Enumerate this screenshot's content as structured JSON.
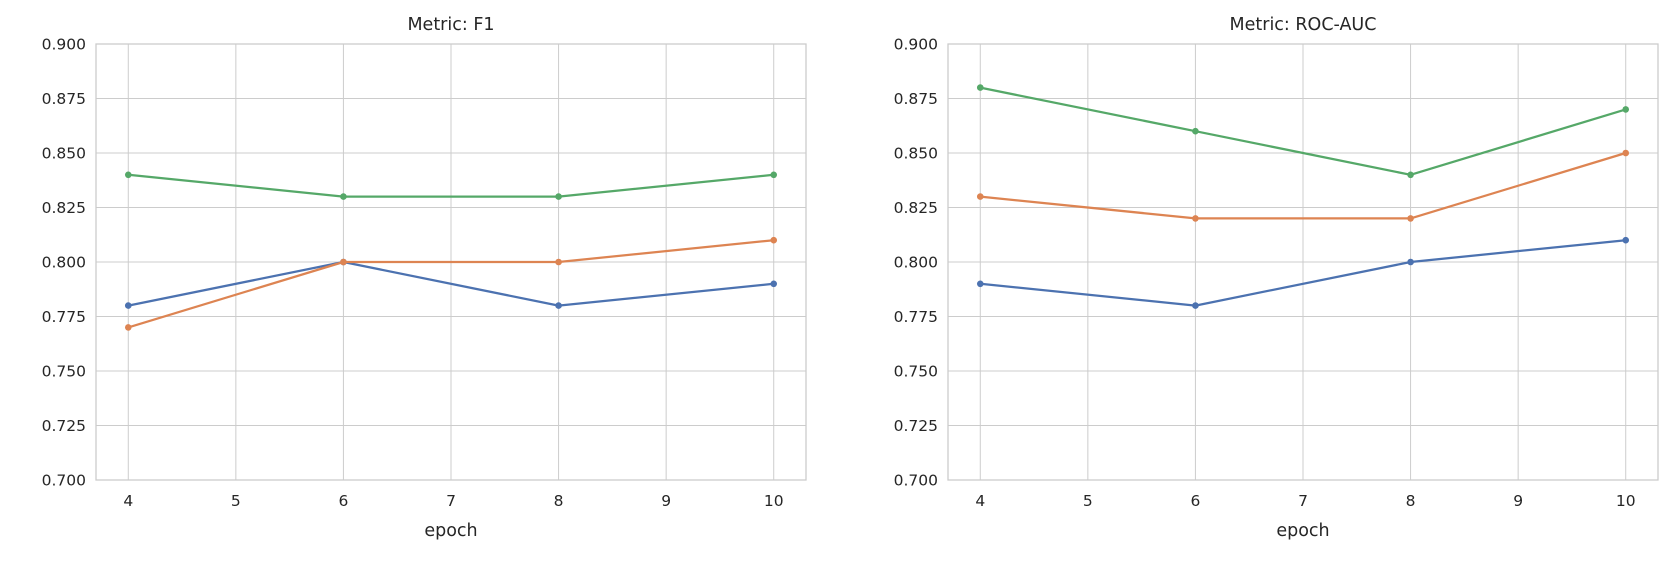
{
  "figure": {
    "background": "#ffffff",
    "text_color": "#262626",
    "grid_color": "#cccccc",
    "spine_color": "#cccccc"
  },
  "chart_data": [
    {
      "type": "line",
      "title": "Metric: F1",
      "xlabel": "epoch",
      "ylabel": "",
      "x": [
        4,
        6,
        8,
        10
      ],
      "xticks": [
        4,
        5,
        6,
        7,
        8,
        9,
        10
      ],
      "yticks": [
        0.7,
        0.725,
        0.75,
        0.775,
        0.8,
        0.825,
        0.85,
        0.875,
        0.9
      ],
      "ytick_labels": [
        "0.700",
        "0.725",
        "0.750",
        "0.775",
        "0.800",
        "0.825",
        "0.850",
        "0.875",
        "0.900"
      ],
      "xlim": [
        3.7,
        10.3
      ],
      "ylim": [
        0.7,
        0.9
      ],
      "grid": true,
      "legend": "none",
      "series": [
        {
          "name": "blue-series",
          "color": "#4C72B0",
          "values": [
            0.78,
            0.8,
            0.78,
            0.79
          ]
        },
        {
          "name": "orange-series",
          "color": "#DD8452",
          "values": [
            0.77,
            0.8,
            0.8,
            0.81
          ]
        },
        {
          "name": "green-series",
          "color": "#55A868",
          "values": [
            0.84,
            0.83,
            0.83,
            0.84
          ]
        }
      ]
    },
    {
      "type": "line",
      "title": "Metric: ROC-AUC",
      "xlabel": "epoch",
      "ylabel": "",
      "x": [
        4,
        6,
        8,
        10
      ],
      "xticks": [
        4,
        5,
        6,
        7,
        8,
        9,
        10
      ],
      "yticks": [
        0.7,
        0.725,
        0.75,
        0.775,
        0.8,
        0.825,
        0.85,
        0.875,
        0.9
      ],
      "ytick_labels": [
        "0.700",
        "0.725",
        "0.750",
        "0.775",
        "0.800",
        "0.825",
        "0.850",
        "0.875",
        "0.900"
      ],
      "xlim": [
        3.7,
        10.3
      ],
      "ylim": [
        0.7,
        0.9
      ],
      "grid": true,
      "legend": "none",
      "series": [
        {
          "name": "blue-series",
          "color": "#4C72B0",
          "values": [
            0.79,
            0.78,
            0.8,
            0.81
          ]
        },
        {
          "name": "orange-series",
          "color": "#DD8452",
          "values": [
            0.83,
            0.82,
            0.82,
            0.85
          ]
        },
        {
          "name": "green-series",
          "color": "#55A868",
          "values": [
            0.88,
            0.86,
            0.84,
            0.87
          ]
        }
      ]
    }
  ]
}
